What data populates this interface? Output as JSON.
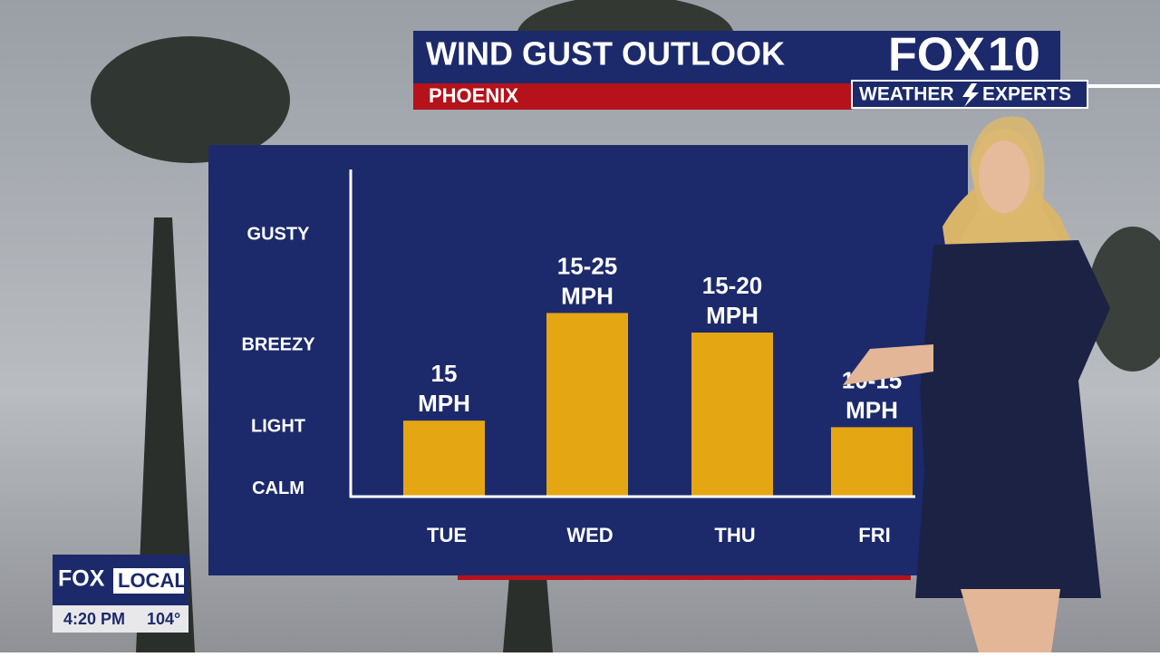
{
  "header": {
    "title": "WIND GUST OUTLOOK",
    "location": "PHOENIX"
  },
  "logo": {
    "brand": "FOX",
    "number": "10",
    "tagline_left": "WEATHER",
    "tagline_right": "EXPERTS"
  },
  "bug": {
    "brand": "FOX",
    "channel": "LOCAL",
    "time": "4:20 PM",
    "temperature": "104°"
  },
  "chart_data": {
    "type": "bar",
    "categories": [
      "TUE",
      "WED",
      "THU",
      "FRI"
    ],
    "values": [
      23,
      56,
      50,
      21
    ],
    "bar_labels": [
      {
        "range": "15",
        "unit": "MPH"
      },
      {
        "range": "15-25",
        "unit": "MPH"
      },
      {
        "range": "15-20",
        "unit": "MPH"
      },
      {
        "range": "10-15",
        "unit": "MPH"
      }
    ],
    "color": "#e5a614",
    "ylim": [
      0,
      100
    ],
    "yticks": [
      {
        "value": 2,
        "label": "CALM"
      },
      {
        "value": 21,
        "label": "LIGHT"
      },
      {
        "value": 46,
        "label": "BREEZY"
      },
      {
        "value": 80,
        "label": "GUSTY"
      }
    ]
  }
}
